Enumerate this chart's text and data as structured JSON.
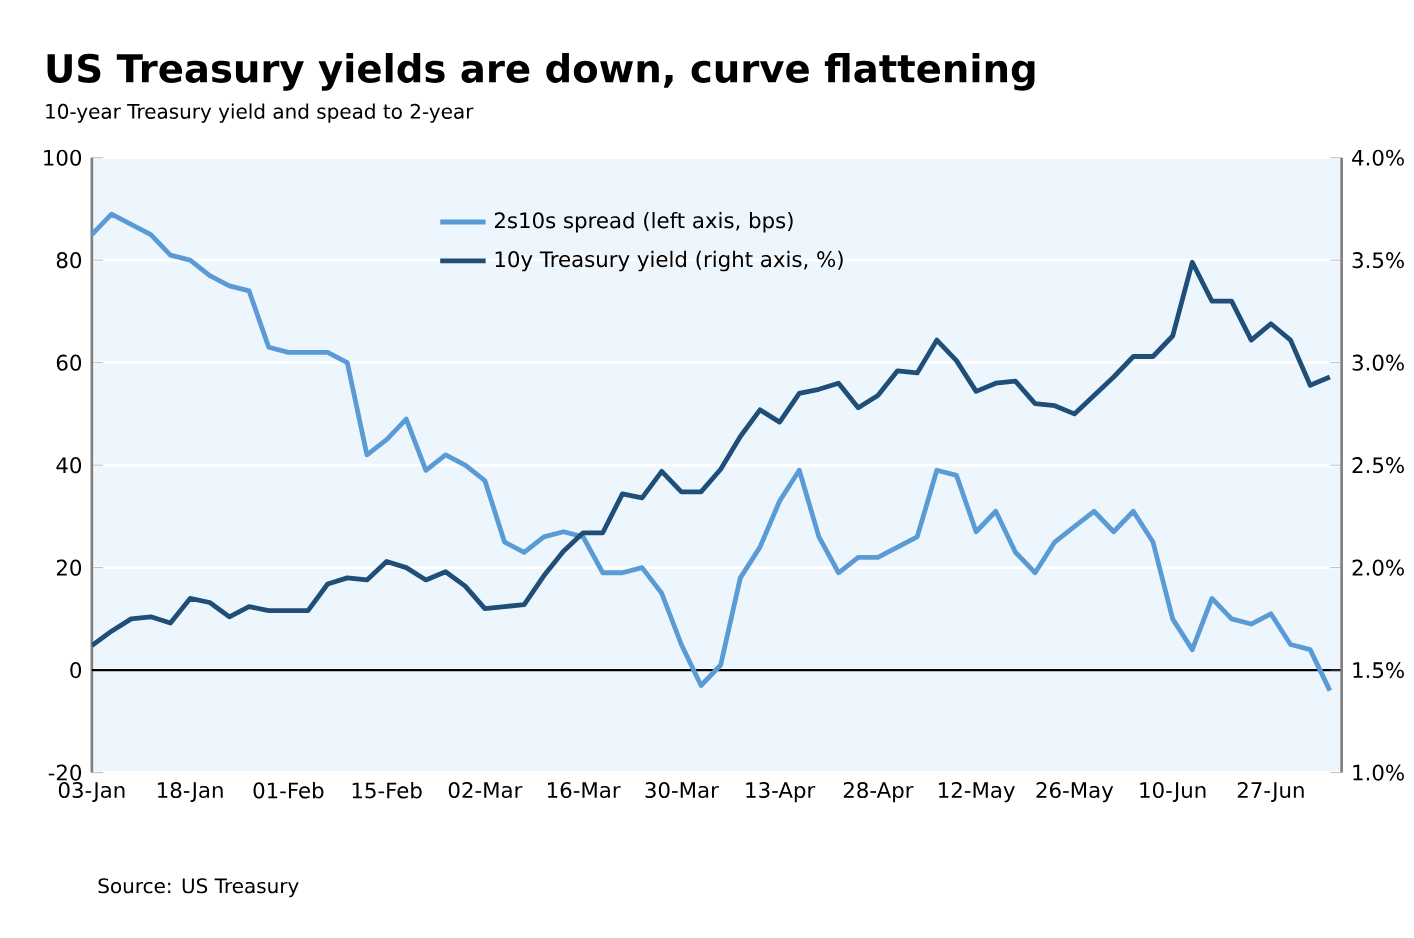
{
  "chart_data": {
    "type": "line",
    "title": "US Treasury yields are down, curve flattening",
    "subtitle": "10-year Treasury yield and spead to 2-year",
    "annotations": [
      "Source: US Treasury"
    ],
    "categories": [
      "03-Jan",
      null,
      null,
      null,
      null,
      "18-Jan",
      null,
      null,
      null,
      null,
      "01-Feb",
      null,
      null,
      null,
      null,
      "15-Feb",
      null,
      null,
      null,
      null,
      "02-Mar",
      null,
      null,
      null,
      null,
      "16-Mar",
      null,
      null,
      null,
      null,
      "30-Mar",
      null,
      null,
      null,
      null,
      "13-Apr",
      null,
      null,
      null,
      null,
      "28-Apr",
      null,
      null,
      null,
      null,
      "12-May",
      null,
      null,
      null,
      null,
      "26-May",
      null,
      null,
      null,
      null,
      "10-Jun",
      null,
      null,
      null,
      null,
      "27-Jun",
      null,
      null,
      null
    ],
    "series": [
      {
        "name": "2s10s spread (left axis, bps)",
        "color": "#5b9bd5",
        "values": [
          85,
          89,
          87,
          85,
          81,
          80,
          77,
          75,
          74,
          63,
          62,
          62,
          62,
          60,
          42,
          45,
          49,
          39,
          42,
          40,
          37,
          25,
          23,
          26,
          27,
          26,
          19,
          19,
          20,
          15,
          5,
          -3,
          1,
          18,
          24,
          33,
          39,
          26,
          19,
          22,
          22,
          24,
          26,
          39,
          38,
          27,
          31,
          23,
          19,
          25,
          28,
          31,
          27,
          31,
          25,
          10,
          4,
          14,
          10,
          9,
          11,
          5,
          4,
          -4
        ]
      },
      {
        "name": "10y Treasury yield (right axis, %)",
        "color": "#1f4e79",
        "axis": "y2",
        "values": [
          1.62,
          1.69,
          1.75,
          1.76,
          1.73,
          1.85,
          1.83,
          1.76,
          1.81,
          1.79,
          1.79,
          1.79,
          1.92,
          1.95,
          1.94,
          2.03,
          2.0,
          1.94,
          1.98,
          1.91,
          1.8,
          1.81,
          1.82,
          1.96,
          2.08,
          2.17,
          2.17,
          2.36,
          2.34,
          2.47,
          2.37,
          2.37,
          2.48,
          2.64,
          2.77,
          2.71,
          2.85,
          2.87,
          2.9,
          2.78,
          2.84,
          2.96,
          2.95,
          3.11,
          3.01,
          2.86,
          2.9,
          2.91,
          2.8,
          2.79,
          2.75,
          2.84,
          2.93,
          3.03,
          3.03,
          3.13,
          3.49,
          3.3,
          3.3,
          3.11,
          3.19,
          3.11,
          2.89,
          2.93
        ]
      }
    ],
    "ylim": [
      -20,
      100
    ],
    "yticks": [
      -20,
      0,
      20,
      40,
      60,
      80,
      100
    ],
    "y2lim": [
      1.0,
      4.0
    ],
    "y2ticks": [
      {
        "value": 1.0,
        "label": "1.0%"
      },
      {
        "value": 1.5,
        "label": "1.5%"
      },
      {
        "value": 2.0,
        "label": "2.0%"
      },
      {
        "value": 2.5,
        "label": "2.5%"
      },
      {
        "value": 3.0,
        "label": "3.0%"
      },
      {
        "value": 3.5,
        "label": "3.5%"
      },
      {
        "value": 4.0,
        "label": "4.0%"
      }
    ],
    "grid": "y",
    "legend": "top",
    "marker": "none",
    "line_style": "solid"
  }
}
